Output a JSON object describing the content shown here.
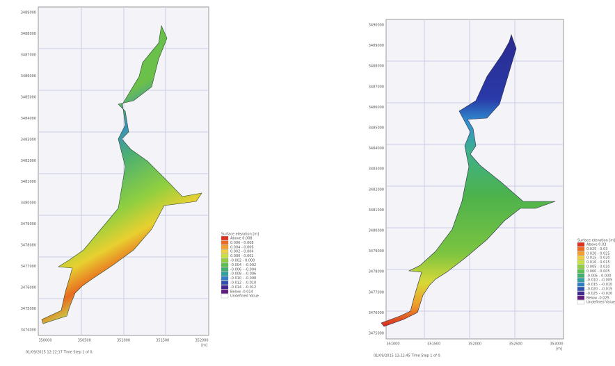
{
  "panels": [
    {
      "y_labels": [
        "3489000",
        "3488000",
        "3487000",
        "3486000",
        "3485000",
        "3484000",
        "3483000",
        "3482000",
        "3481000",
        "3480000",
        "3479000",
        "3478000",
        "3477000",
        "3476000",
        "3475000",
        "3474000"
      ],
      "x_labels": [
        "350000",
        "350500",
        "351000",
        "351500",
        "352000"
      ],
      "x_unit": "[m]",
      "legend_title": "Surface elevation [m]",
      "legend": [
        "Above 0.008",
        "0.006 - 0.008",
        "0.004 - 0.006",
        "0.002 - 0.004",
        "0.000 - 0.002",
        "-0.002 - 0.000",
        "-0.004 - -0.002",
        "-0.006 - -0.004",
        "-0.008 - -0.006",
        "-0.010 - -0.008",
        "-0.012 - -0.010",
        "-0.014 - -0.012",
        "Below -0.014",
        "Undefined Value"
      ],
      "footer": "01/09/2015 12:22:17 Time Step 1 of 0."
    },
    {
      "y_labels": [
        "3490000",
        "3489000",
        "3488000",
        "3487000",
        "3486000",
        "3485000",
        "3484000",
        "3483000",
        "3482000",
        "3481000",
        "3480000",
        "3479000",
        "3478000",
        "3477000",
        "3476000",
        "3475000"
      ],
      "x_labels": [
        "351000",
        "351500",
        "352000",
        "352500",
        "353000"
      ],
      "x_unit": "[m]",
      "legend_title": "Surface elevation [m]",
      "legend": [
        "Above 0.03",
        "0.025 - 0.03",
        "0.020 - 0.025",
        "0.015 - 0.020",
        "0.010 - 0.015",
        "0.005 - 0.010",
        "0.000 - 0.005",
        "-0.005 - 0.000",
        "-0.010 - -0.005",
        "-0.015 - -0.010",
        "-0.020 - -0.015",
        "-0.025 - -0.020",
        "Below -0.025",
        "Undefined Value"
      ],
      "footer": "01/09/2015 12:22:45 Time Step 1 of 0."
    }
  ]
}
